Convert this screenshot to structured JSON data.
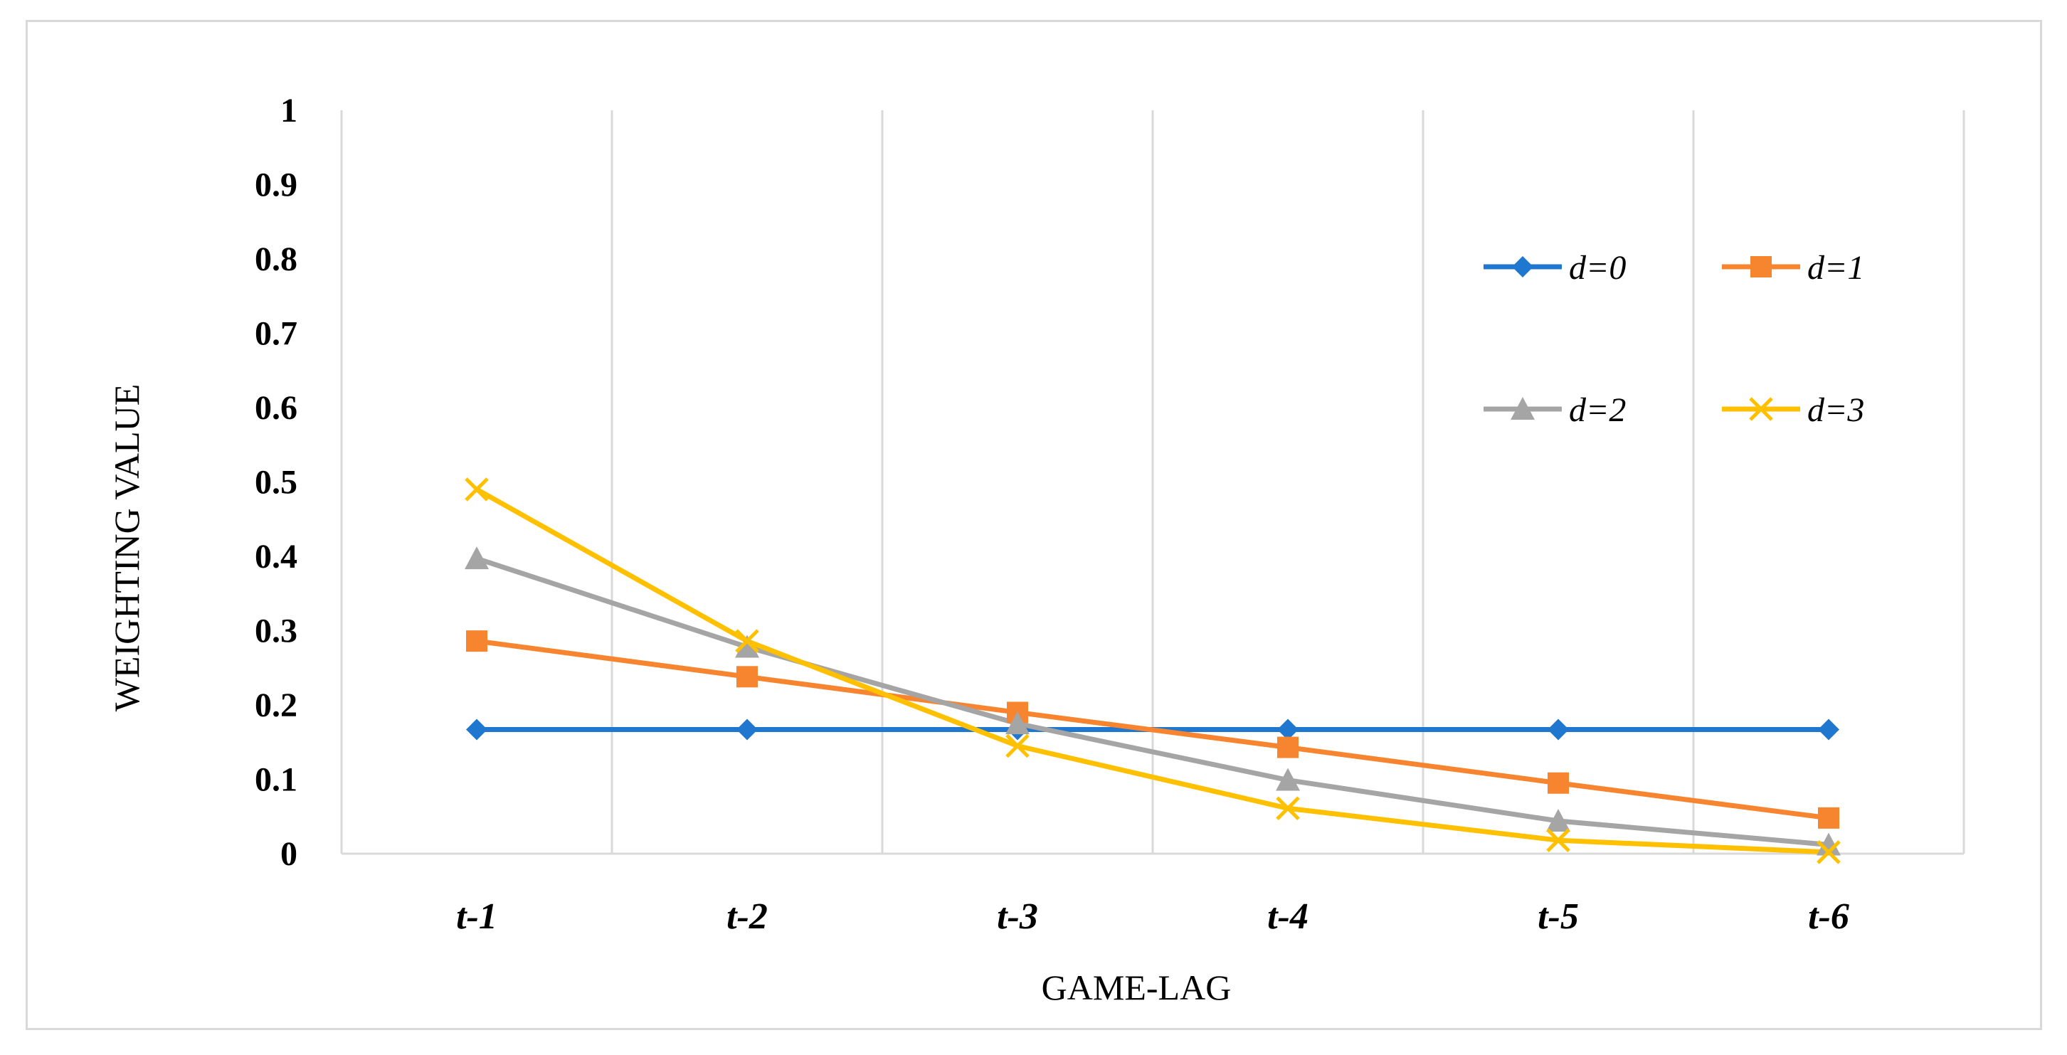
{
  "chart_data": {
    "type": "line",
    "title": "",
    "xlabel": "GAME-LAG",
    "ylabel": "WEIGHTING VALUE",
    "categories": [
      "t-1",
      "t-2",
      "t-3",
      "t-4",
      "t-5",
      "t-6"
    ],
    "ylim": [
      0,
      1
    ],
    "yticks": [
      "0",
      "0.1",
      "0.2",
      "0.3",
      "0.4",
      "0.5",
      "0.6",
      "0.7",
      "0.8",
      "0.9",
      "1"
    ],
    "grid": "vertical",
    "legend": "top-right",
    "series": [
      {
        "name": "d=0",
        "color": "#1f77d0",
        "marker": "diamond",
        "values": [
          0.167,
          0.167,
          0.167,
          0.167,
          0.167,
          0.167
        ]
      },
      {
        "name": "d=1",
        "color": "#f7852f",
        "marker": "square",
        "values": [
          0.286,
          0.238,
          0.19,
          0.143,
          0.095,
          0.048
        ]
      },
      {
        "name": "d=2",
        "color": "#a5a5a5",
        "marker": "triangle",
        "values": [
          0.397,
          0.278,
          0.175,
          0.099,
          0.044,
          0.012
        ]
      },
      {
        "name": "d=3",
        "color": "#ffc000",
        "marker": "cross",
        "values": [
          0.49,
          0.286,
          0.145,
          0.061,
          0.018,
          0.002
        ]
      }
    ]
  }
}
